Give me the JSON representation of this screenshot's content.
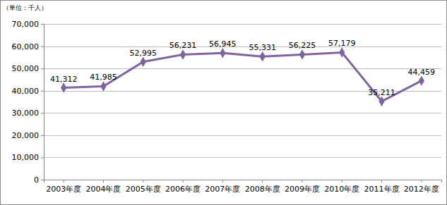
{
  "chart_data": {
    "type": "line",
    "y_label": "（単位：千人）",
    "categories": [
      "2003年度",
      "2004年度",
      "2005年度",
      "2006年度",
      "2007年度",
      "2008年度",
      "2009年度",
      "2010年度",
      "2011年度",
      "2012年度"
    ],
    "values": [
      41312,
      41985,
      52995,
      56231,
      56945,
      55331,
      56225,
      57179,
      35211,
      44459
    ],
    "value_labels": [
      "41,312",
      "41,985",
      "52,995",
      "56,231",
      "56,945",
      "55,331",
      "56,225",
      "57,179",
      "35,211",
      "44,459"
    ],
    "color": "#8064a2",
    "marker": "diamond",
    "data_labels": true,
    "ylim": [
      0,
      70000
    ],
    "yticks": [
      0,
      {
        "value": 10000,
        "label": "10,000"
      },
      {
        "value": 20000,
        "label": "20,000"
      },
      {
        "value": 30000,
        "label": "30,000"
      },
      {
        "value": 40000,
        "label": "40,000"
      },
      {
        "value": 50000,
        "label": "50,000"
      },
      {
        "value": 60000,
        "label": "60,000"
      },
      {
        "value": 70000,
        "label": "70,000"
      }
    ],
    "grid": true
  }
}
